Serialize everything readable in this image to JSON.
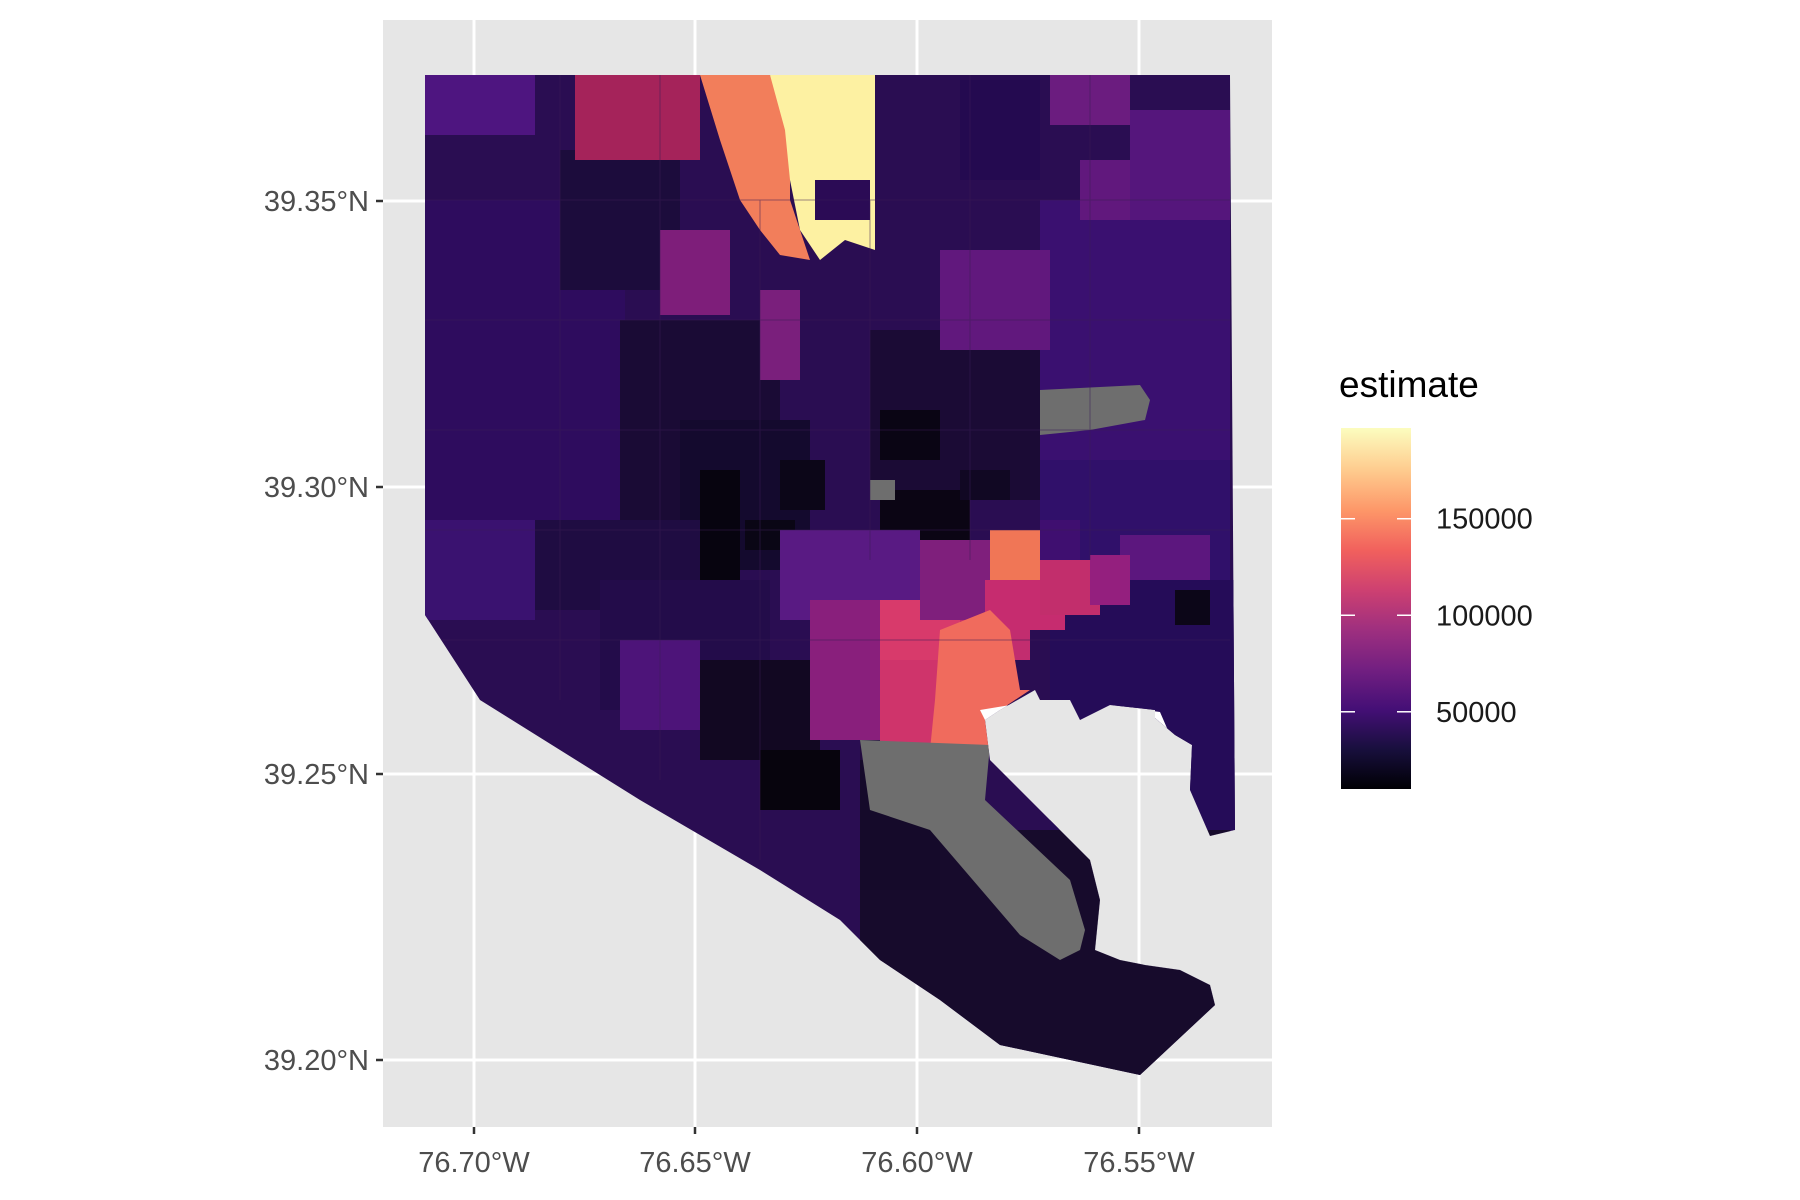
{
  "map": {
    "type": "choropleth",
    "fill_variable": "estimate",
    "palette": "magma",
    "na_color": "#6e6e6e",
    "panel_background": "#e6e6e6",
    "x_ticks": [
      "76.70°W",
      "76.65°W",
      "76.60°W",
      "76.55°W"
    ],
    "y_ticks": [
      "39.35°N",
      "39.30°N",
      "39.25°N",
      "39.20°N"
    ]
  },
  "legend": {
    "title": "estimate",
    "range": [
      10000,
      197000
    ],
    "ticks": [
      {
        "value": 50000,
        "label": "50000"
      },
      {
        "value": 100000,
        "label": "100000"
      },
      {
        "value": 150000,
        "label": "150000"
      }
    ],
    "colors": [
      "#000004",
      "#180f3d",
      "#440f76",
      "#721f81",
      "#9e2f7f",
      "#cd4071",
      "#f1605d",
      "#fd9668",
      "#feca8d",
      "#fcfdbf"
    ]
  }
}
